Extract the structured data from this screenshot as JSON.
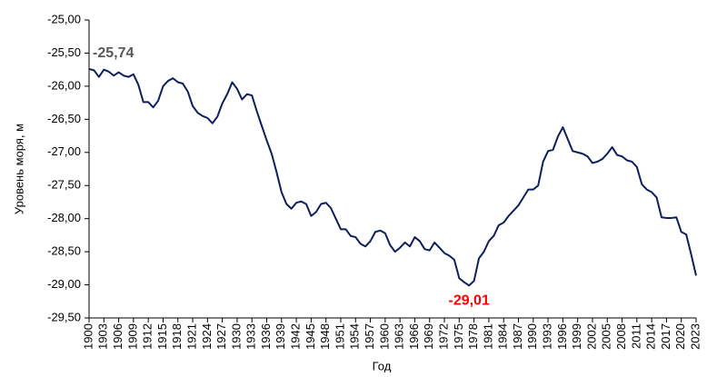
{
  "chart_data": {
    "type": "line",
    "y_label": "Уровень моря,  м",
    "x_label": "Год",
    "x": [
      1900,
      1901,
      1902,
      1903,
      1904,
      1905,
      1906,
      1907,
      1908,
      1909,
      1910,
      1911,
      1912,
      1913,
      1914,
      1915,
      1916,
      1917,
      1918,
      1919,
      1920,
      1921,
      1922,
      1923,
      1924,
      1925,
      1926,
      1927,
      1928,
      1929,
      1930,
      1931,
      1932,
      1933,
      1934,
      1935,
      1936,
      1937,
      1938,
      1939,
      1940,
      1941,
      1942,
      1943,
      1944,
      1945,
      1946,
      1947,
      1948,
      1949,
      1950,
      1951,
      1952,
      1953,
      1954,
      1955,
      1956,
      1957,
      1958,
      1959,
      1960,
      1961,
      1962,
      1963,
      1964,
      1965,
      1966,
      1967,
      1968,
      1969,
      1970,
      1971,
      1972,
      1973,
      1974,
      1975,
      1976,
      1977,
      1978,
      1979,
      1980,
      1981,
      1982,
      1983,
      1984,
      1985,
      1986,
      1987,
      1988,
      1989,
      1990,
      1991,
      1992,
      1993,
      1994,
      1995,
      1996,
      1997,
      1998,
      1999,
      2000,
      2001,
      2002,
      2003,
      2004,
      2005,
      2006,
      2007,
      2008,
      2009,
      2010,
      2011,
      2012,
      2013,
      2014,
      2015,
      2016,
      2017,
      2018,
      2019,
      2020,
      2021,
      2022,
      2023
    ],
    "series": [
      {
        "color": "#0d1f5c",
        "values": [
          -25.74,
          -25.76,
          -25.86,
          -25.75,
          -25.78,
          -25.84,
          -25.79,
          -25.84,
          -25.86,
          -25.82,
          -25.98,
          -26.24,
          -26.24,
          -26.32,
          -26.22,
          -26.0,
          -25.92,
          -25.88,
          -25.94,
          -25.96,
          -26.08,
          -26.3,
          -26.4,
          -26.45,
          -26.48,
          -26.56,
          -26.46,
          -26.26,
          -26.12,
          -25.94,
          -26.04,
          -26.2,
          -26.12,
          -26.14,
          -26.38,
          -26.6,
          -26.82,
          -27.02,
          -27.3,
          -27.6,
          -27.78,
          -27.85,
          -27.76,
          -27.74,
          -27.78,
          -27.96,
          -27.9,
          -27.78,
          -27.76,
          -27.84,
          -28.0,
          -28.16,
          -28.16,
          -28.26,
          -28.28,
          -28.38,
          -28.42,
          -28.34,
          -28.2,
          -28.18,
          -28.22,
          -28.4,
          -28.5,
          -28.44,
          -28.36,
          -28.42,
          -28.28,
          -28.34,
          -28.46,
          -28.48,
          -28.36,
          -28.44,
          -28.52,
          -28.56,
          -28.62,
          -28.9,
          -28.96,
          -29.01,
          -28.94,
          -28.6,
          -28.5,
          -28.34,
          -28.26,
          -28.1,
          -28.06,
          -27.96,
          -27.88,
          -27.8,
          -27.68,
          -27.56,
          -27.56,
          -27.5,
          -27.14,
          -26.98,
          -26.96,
          -26.76,
          -26.62,
          -26.8,
          -26.98,
          -27.0,
          -27.02,
          -27.06,
          -27.16,
          -27.14,
          -27.1,
          -27.02,
          -26.92,
          -27.04,
          -27.06,
          -27.12,
          -27.14,
          -27.22,
          -27.48,
          -27.56,
          -27.6,
          -27.68,
          -27.98,
          -27.99,
          -27.99,
          -27.98,
          -28.2,
          -28.24,
          -28.54,
          -28.86
        ]
      }
    ],
    "annotations": [
      {
        "x": 1900,
        "y": -25.74,
        "label": "-25,74",
        "color": "#595959"
      },
      {
        "x": 1977,
        "y": -29.01,
        "label": "-29,01",
        "color": "#ff0000"
      }
    ],
    "xlim": [
      1900,
      2023
    ],
    "xticks": [
      1900,
      1903,
      1906,
      1909,
      1912,
      1915,
      1918,
      1921,
      1924,
      1927,
      1930,
      1933,
      1936,
      1939,
      1942,
      1945,
      1948,
      1951,
      1954,
      1957,
      1960,
      1963,
      1966,
      1969,
      1972,
      1975,
      1978,
      1981,
      1984,
      1987,
      1990,
      1993,
      1996,
      1999,
      2002,
      2005,
      2008,
      2011,
      2014,
      2017,
      2020,
      2023
    ],
    "ylim": [
      -29.5,
      -25
    ],
    "yticks": [
      {
        "value": -25,
        "label": "-25,00"
      },
      {
        "value": -25.5,
        "label": "-25,50"
      },
      {
        "value": -26,
        "label": "-26,00"
      },
      {
        "value": -26.5,
        "label": "-26,50"
      },
      {
        "value": -27,
        "label": "-27,00"
      },
      {
        "value": -27.5,
        "label": "-27,50"
      },
      {
        "value": -28,
        "label": "-28,00"
      },
      {
        "value": -28.5,
        "label": "-28,50"
      },
      {
        "value": -29,
        "label": "-29,00"
      },
      {
        "value": -29.5,
        "label": "-29,50"
      }
    ]
  }
}
